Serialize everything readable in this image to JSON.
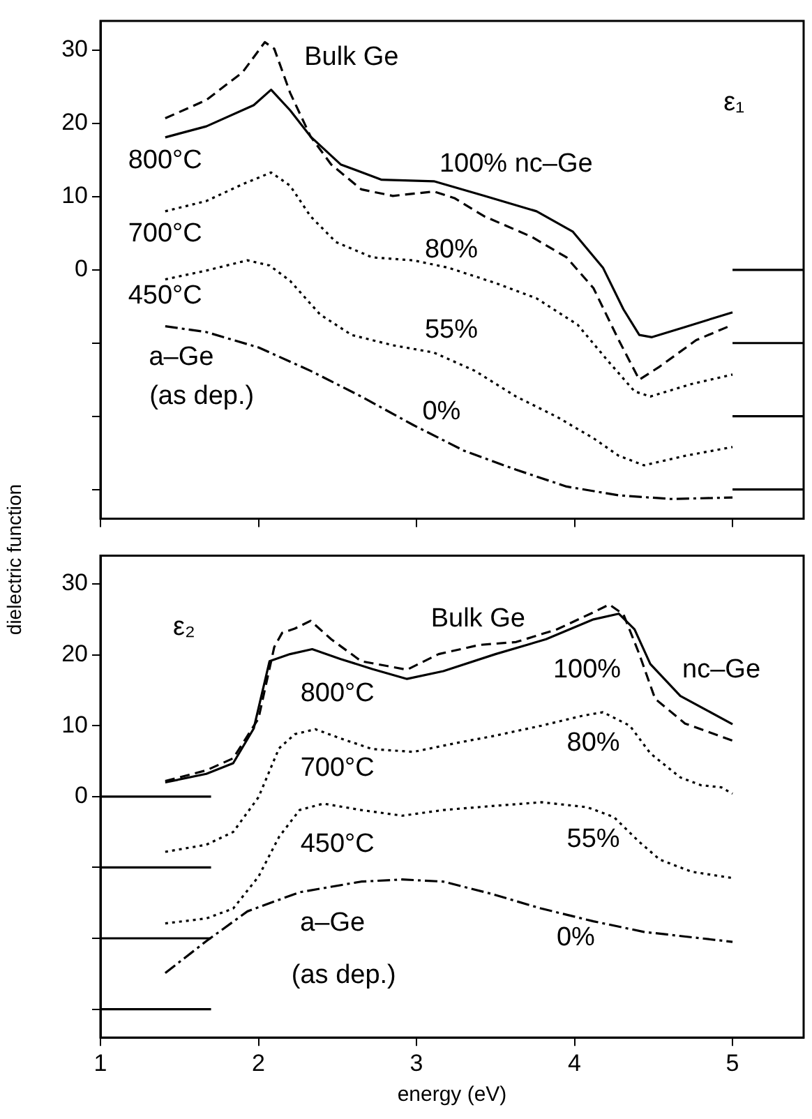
{
  "chart_data": [
    {
      "type": "line",
      "ylabel": "dielectric function",
      "xlim": [
        1,
        5.45
      ],
      "xticks": [
        1,
        2,
        3,
        4,
        5
      ],
      "ylim": [
        -34,
        34
      ],
      "yticks": [
        {
          "value": -30,
          "label": null
        },
        {
          "value": -20,
          "label": null
        },
        {
          "value": -10,
          "label": null
        },
        0,
        10,
        20,
        30
      ],
      "tick_labels": "y",
      "series": [
        {
          "color": "#000000",
          "line_style": "dashed",
          "x": [
            1.41,
            1.67,
            1.9,
            2.04,
            2.1,
            2.2,
            2.33,
            2.46,
            2.65,
            2.85,
            3.11,
            3.24,
            3.43,
            3.73,
            3.95,
            4.12,
            4.28,
            4.41,
            4.54,
            4.77,
            4.99
          ],
          "values": [
            20.7,
            23.2,
            27.0,
            31.1,
            30.2,
            24.2,
            18.2,
            14.4,
            11.0,
            10.1,
            10.7,
            9.8,
            7.3,
            4.5,
            1.7,
            -2.5,
            -9.6,
            -15.0,
            -13.2,
            -9.6,
            -7.6
          ]
        },
        {
          "color": "#000000",
          "line_style": "solid",
          "x": [
            1.41,
            1.67,
            1.97,
            2.08,
            2.2,
            2.33,
            2.52,
            2.78,
            3.11,
            3.43,
            3.76,
            3.99,
            4.18,
            4.31,
            4.41,
            4.49,
            4.7,
            5.0
          ],
          "values": [
            18.1,
            19.6,
            22.5,
            24.6,
            21.8,
            18.2,
            14.4,
            12.3,
            12.1,
            10.1,
            8.0,
            5.2,
            0.3,
            -5.4,
            -8.9,
            -9.2,
            -7.8,
            -5.8
          ]
        },
        {
          "color": "#000000",
          "line_style": "dotted",
          "x": [
            1.41,
            1.67,
            1.9,
            2.08,
            2.2,
            2.33,
            2.49,
            2.72,
            2.98,
            3.2,
            3.5,
            3.76,
            4.02,
            4.21,
            4.38,
            4.48,
            4.74,
            5.0
          ],
          "values": [
            8.0,
            9.4,
            11.7,
            13.3,
            11.5,
            7.3,
            3.8,
            1.7,
            1.3,
            0.3,
            -1.8,
            -3.9,
            -7.5,
            -12.4,
            -16.6,
            -17.3,
            -15.6,
            -14.3
          ]
        },
        {
          "color": "#000000",
          "line_style": "dotted",
          "x": [
            1.41,
            1.67,
            1.93,
            2.07,
            2.2,
            2.39,
            2.59,
            2.85,
            3.11,
            3.37,
            3.63,
            3.89,
            4.12,
            4.28,
            4.44,
            4.7,
            5.0
          ],
          "values": [
            -1.3,
            -0.1,
            1.3,
            0.6,
            -1.5,
            -6.1,
            -8.9,
            -10.3,
            -11.3,
            -13.8,
            -17.3,
            -20.1,
            -23.0,
            -25.4,
            -26.7,
            -25.4,
            -24.2
          ]
        },
        {
          "color": "#000000",
          "line_style": "dashdot",
          "x": [
            1.41,
            1.67,
            2.0,
            2.33,
            2.65,
            2.98,
            3.3,
            3.63,
            3.95,
            4.28,
            4.61,
            5.0
          ],
          "values": [
            -7.7,
            -8.5,
            -10.6,
            -13.8,
            -17.3,
            -21.2,
            -24.7,
            -27.3,
            -29.6,
            -30.8,
            -31.3,
            -31.1
          ]
        },
        {
          "color": "#000000",
          "line_style": "solid",
          "x": [
            5,
            5.45
          ],
          "values": [
            0,
            0
          ]
        },
        {
          "color": "#000000",
          "line_style": "solid",
          "x": [
            5,
            5.45
          ],
          "values": [
            -10,
            -10
          ]
        },
        {
          "color": "#000000",
          "line_style": "solid",
          "x": [
            5,
            5.45
          ],
          "values": [
            -20,
            -20
          ]
        },
        {
          "color": "#000000",
          "line_style": "solid",
          "x": [
            5,
            5.45
          ],
          "values": [
            -30,
            -30
          ]
        }
      ],
      "annotations": [
        "Bulk Ge",
        "ε₁",
        "800°C",
        "100% nc–Ge",
        "700°C",
        "80%",
        "450°C",
        "55%",
        "a–Ge",
        "(as dep.)",
        "0%"
      ]
    },
    {
      "type": "line",
      "xlabel": "energy (eV)",
      "xlim": [
        1,
        5.45
      ],
      "xticks": [
        1,
        2,
        3,
        4,
        5
      ],
      "ylim": [
        -34,
        34
      ],
      "yticks": [
        {
          "value": -30,
          "label": null
        },
        {
          "value": -20,
          "label": null
        },
        {
          "value": -10,
          "label": null
        },
        0,
        10,
        20,
        30
      ],
      "series": [
        {
          "color": "#000000",
          "line_style": "dashed",
          "x": [
            1.41,
            1.67,
            1.84,
            2.0,
            2.1,
            2.15,
            2.23,
            2.33,
            2.46,
            2.65,
            2.94,
            3.14,
            3.4,
            3.63,
            3.89,
            4.12,
            4.22,
            4.31,
            4.41,
            4.51,
            4.7,
            5.0
          ],
          "values": [
            2.2,
            3.7,
            5.4,
            11.0,
            21.1,
            23.1,
            23.7,
            24.8,
            22.2,
            19.1,
            17.9,
            20.1,
            21.4,
            21.8,
            23.6,
            26.0,
            27.1,
            25.7,
            20.1,
            13.8,
            10.3,
            7.9
          ]
        },
        {
          "color": "#000000",
          "line_style": "solid",
          "x": [
            1.41,
            1.67,
            1.84,
            1.97,
            2.07,
            2.2,
            2.34,
            2.52,
            2.72,
            2.94,
            3.17,
            3.5,
            3.82,
            4.12,
            4.28,
            4.38,
            4.48,
            4.67,
            5.0
          ],
          "values": [
            2.0,
            3.2,
            4.7,
            9.6,
            19.1,
            20.1,
            20.8,
            19.4,
            18.0,
            16.6,
            17.7,
            20.1,
            22.2,
            25.0,
            25.8,
            23.6,
            18.7,
            14.2,
            10.2
          ]
        },
        {
          "color": "#000000",
          "line_style": "dotted",
          "x": [
            1.41,
            1.67,
            1.84,
            2.0,
            2.13,
            2.23,
            2.36,
            2.52,
            2.72,
            2.98,
            3.24,
            3.5,
            3.79,
            4.05,
            4.18,
            4.35,
            4.48,
            4.67,
            4.8,
            4.93,
            5.0
          ],
          "values": [
            -7.8,
            -6.8,
            -5.0,
            -0.1,
            6.8,
            8.8,
            9.5,
            8.2,
            6.7,
            6.3,
            7.5,
            8.6,
            10.0,
            11.4,
            11.9,
            10.0,
            6.1,
            2.7,
            1.6,
            1.3,
            0.4
          ]
        },
        {
          "color": "#000000",
          "line_style": "dotted",
          "x": [
            1.41,
            1.67,
            1.84,
            2.0,
            2.13,
            2.26,
            2.41,
            2.65,
            2.91,
            3.17,
            3.5,
            3.79,
            4.08,
            4.25,
            4.41,
            4.54,
            4.74,
            5.0
          ],
          "values": [
            -17.9,
            -17.2,
            -15.8,
            -11.3,
            -5.7,
            -1.9,
            -1.0,
            -1.9,
            -2.7,
            -1.9,
            -1.3,
            -0.8,
            -1.5,
            -2.9,
            -6.4,
            -8.9,
            -10.6,
            -11.5
          ]
        },
        {
          "color": "#000000",
          "line_style": "dashdot",
          "x": [
            1.41,
            1.67,
            1.93,
            2.26,
            2.65,
            2.91,
            3.17,
            3.47,
            3.79,
            4.12,
            4.44,
            5.0
          ],
          "values": [
            -24.9,
            -20.4,
            -16.2,
            -13.5,
            -12.0,
            -11.7,
            -12.0,
            -13.7,
            -15.8,
            -17.6,
            -19.1,
            -20.5
          ]
        },
        {
          "color": "#000000",
          "line_style": "solid",
          "x": [
            1,
            1.7
          ],
          "values": [
            0,
            0
          ]
        },
        {
          "color": "#000000",
          "line_style": "solid",
          "x": [
            1,
            1.7
          ],
          "values": [
            -10,
            -10
          ]
        },
        {
          "color": "#000000",
          "line_style": "solid",
          "x": [
            1,
            1.7
          ],
          "values": [
            -20,
            -20
          ]
        },
        {
          "color": "#000000",
          "line_style": "solid",
          "x": [
            1,
            1.7
          ],
          "values": [
            -30,
            -30
          ]
        }
      ],
      "annotations": [
        "ε₂",
        "Bulk Ge",
        "800°C",
        "100%",
        "nc–Ge",
        "700°C",
        "80%",
        "450°C",
        "55%",
        "a–Ge",
        "(as dep.)",
        "0%"
      ]
    }
  ]
}
